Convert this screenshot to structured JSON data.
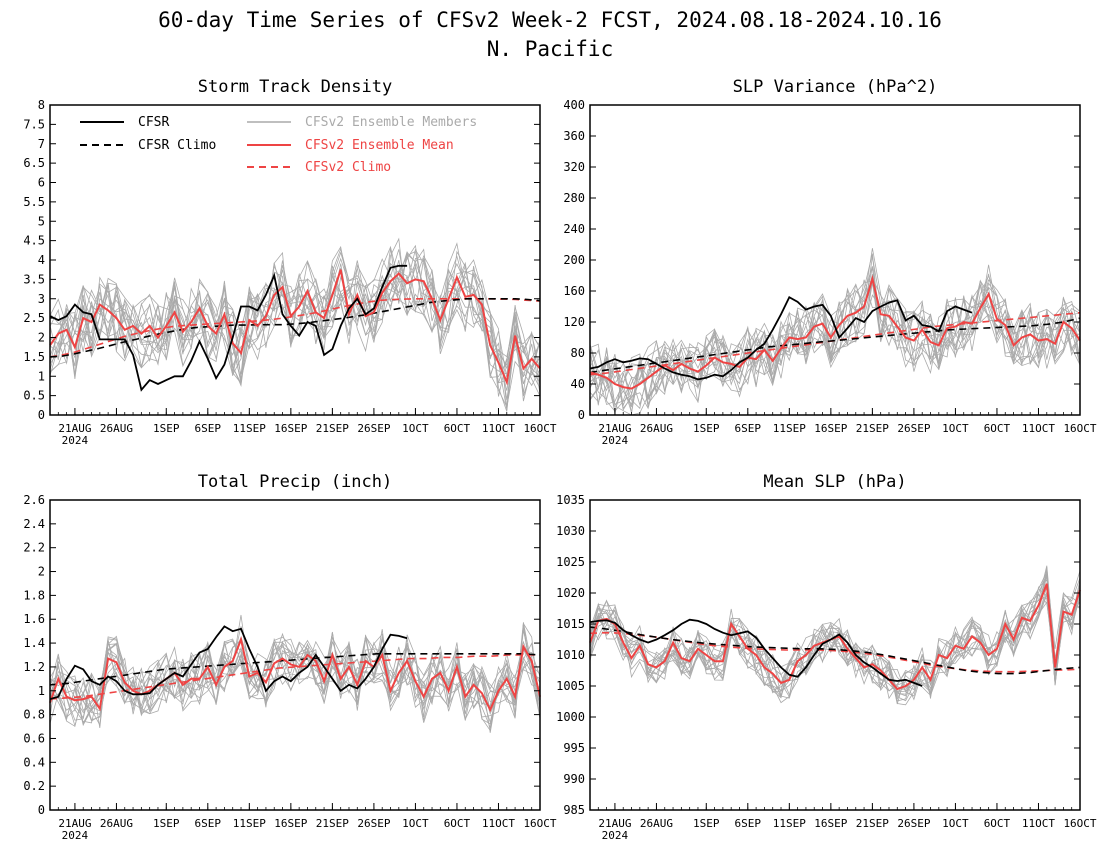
{
  "figure": {
    "title_line1": "60-day Time Series of CFSv2 Week-2 FCST, 2024.08.18-2024.10.16",
    "title_line2": "N. Pacific"
  },
  "legend": {
    "cfsr": "CFSR",
    "cfsr_climo": "CFSR Climo",
    "members": "CFSv2 Ensemble Members",
    "ens_mean": "CFSv2 Ensemble Mean",
    "cfsv2_climo": "CFSv2 Climo"
  },
  "colors": {
    "cfsr": "#000000",
    "members": "#aaaaaa",
    "ens_mean": "#ee4444",
    "cfsv2_climo": "#ee4444",
    "cfsr_climo": "#000000"
  },
  "x_axis": {
    "tick_labels": [
      "21AUG",
      "26AUG",
      "1SEP",
      "6SEP",
      "11SEP",
      "16SEP",
      "21SEP",
      "26SEP",
      "1OCT",
      "6OCT",
      "11OCT",
      "16OCT"
    ],
    "tick_days": [
      3,
      8,
      14,
      19,
      24,
      29,
      34,
      39,
      44,
      49,
      54,
      59
    ],
    "year_label": "2024",
    "n_days": 60
  },
  "chart_data": [
    {
      "type": "line",
      "title": "Storm Track Density",
      "ylim": [
        0,
        8
      ],
      "yticks": [
        "0",
        "0.5",
        "1",
        "1.5",
        "2",
        "2.5",
        "3",
        "3.5",
        "4",
        "4.5",
        "5",
        "5.5",
        "6",
        "6.5",
        "7",
        "7.5",
        "8"
      ],
      "ytick_values": [
        0,
        0.5,
        1,
        1.5,
        2,
        2.5,
        3,
        3.5,
        4,
        4.5,
        5,
        5.5,
        6,
        6.5,
        7,
        7.5,
        8
      ],
      "cfsr": [
        2.55,
        2.45,
        2.55,
        2.85,
        2.65,
        2.6,
        1.95,
        1.95,
        1.95,
        1.95,
        1.55,
        0.65,
        0.9,
        0.8,
        0.9,
        1.0,
        1.0,
        1.4,
        1.9,
        1.45,
        0.95,
        1.3,
        2.0,
        2.8,
        2.8,
        2.7,
        3.1,
        3.6,
        2.6,
        2.3,
        2.05,
        2.4,
        2.3,
        1.55,
        1.7,
        2.3,
        2.75,
        3.0,
        2.6,
        2.75,
        3.3,
        3.8,
        3.85,
        3.85
      ],
      "ens_mean": [
        1.8,
        2.1,
        2.2,
        1.75,
        2.5,
        2.4,
        2.85,
        2.7,
        2.5,
        2.2,
        2.3,
        2.1,
        2.3,
        2.0,
        2.3,
        2.65,
        2.15,
        2.4,
        2.75,
        2.3,
        2.1,
        2.6,
        1.85,
        1.6,
        2.45,
        2.3,
        2.55,
        3.1,
        3.3,
        2.55,
        2.8,
        3.2,
        2.65,
        2.5,
        3.1,
        3.75,
        2.6,
        3.1,
        2.55,
        2.65,
        3.15,
        3.45,
        3.65,
        3.4,
        3.5,
        3.45,
        3.0,
        2.45,
        3.0,
        3.55,
        3.05,
        3.1,
        2.85,
        1.8,
        1.35,
        0.85,
        2.05,
        1.2,
        1.45,
        1.2
      ],
      "cfsr_climo": [
        1.5,
        1.52,
        1.58,
        1.65,
        1.72,
        1.8,
        1.88,
        1.95,
        2.03,
        2.1,
        2.16,
        2.22,
        2.26,
        2.28,
        2.3,
        2.32,
        2.32,
        2.33,
        2.33,
        2.33,
        2.35,
        2.38,
        2.42,
        2.46,
        2.5,
        2.55,
        2.6,
        2.66,
        2.72,
        2.78,
        2.84,
        2.9,
        2.94,
        2.97,
        3.0,
        3.0,
        3.0,
        3.0,
        3.0,
        2.98,
        2.95
      ],
      "cfsr_climo_days": [
        0,
        1.5,
        3,
        4.5,
        6,
        7.5,
        9,
        10.5,
        12,
        13.5,
        15,
        16.5,
        18,
        19.5,
        21,
        22.5,
        24,
        25.5,
        27,
        28.5,
        30,
        31.5,
        33,
        34.5,
        36,
        37.5,
        39,
        40.5,
        42,
        43.5,
        45,
        46.5,
        48,
        49.5,
        51,
        52.5,
        54,
        55.5,
        57,
        58.5,
        60
      ],
      "cfsv2_climo": [
        1.5,
        1.55,
        1.62,
        1.72,
        1.82,
        1.92,
        2.02,
        2.1,
        2.17,
        2.23,
        2.28,
        2.31,
        2.33,
        2.35,
        2.37,
        2.39,
        2.41,
        2.43,
        2.46,
        2.5,
        2.55,
        2.6,
        2.66,
        2.73,
        2.8,
        2.86,
        2.92,
        2.96,
        2.98,
        2.99,
        3.0,
        3.0,
        3.0,
        3.0,
        3.0,
        3.0,
        3.0,
        2.99,
        2.98,
        2.96,
        2.94
      ],
      "members_center": "ens_mean",
      "members_spread": 0.9
    },
    {
      "type": "line",
      "title": "SLP Variance (hPa^2)",
      "ylim": [
        0,
        400
      ],
      "yticks": [
        "0",
        "40",
        "80",
        "120",
        "160",
        "200",
        "240",
        "280",
        "320",
        "360",
        "400"
      ],
      "ytick_values": [
        0,
        40,
        80,
        120,
        160,
        200,
        240,
        280,
        320,
        360,
        400
      ],
      "cfsr": [
        60,
        62,
        68,
        72,
        68,
        70,
        73,
        72,
        66,
        60,
        55,
        52,
        50,
        46,
        48,
        52,
        50,
        58,
        68,
        74,
        84,
        92,
        110,
        130,
        152,
        146,
        136,
        140,
        142,
        128,
        100,
        112,
        125,
        120,
        134,
        140,
        145,
        148,
        122,
        128,
        116,
        114,
        108,
        134,
        140,
        136,
        132
      ],
      "ens_mean": [
        55,
        52,
        48,
        40,
        36,
        34,
        40,
        48,
        56,
        64,
        58,
        66,
        60,
        56,
        64,
        74,
        68,
        66,
        62,
        74,
        72,
        84,
        70,
        86,
        100,
        98,
        100,
        114,
        118,
        100,
        116,
        128,
        132,
        140,
        176,
        130,
        128,
        114,
        100,
        96,
        110,
        94,
        90,
        112,
        114,
        120,
        118,
        138,
        156,
        124,
        116,
        90,
        100,
        104,
        96,
        98,
        92,
        120,
        112,
        96
      ],
      "cfsr_climo": [
        55,
        58,
        61,
        64,
        67,
        70,
        73,
        76,
        79,
        82,
        85,
        88,
        90,
        92,
        94,
        96,
        98,
        100,
        102,
        104,
        106,
        108,
        110,
        111,
        112,
        113,
        114,
        115,
        117,
        120,
        125
      ],
      "cfsr_climo_days": [
        0,
        2,
        4,
        6,
        8,
        10,
        12,
        14,
        16,
        18,
        20,
        22,
        24,
        26,
        28,
        30,
        32,
        34,
        36,
        38,
        40,
        42,
        44,
        46,
        48,
        50,
        52,
        54,
        56,
        58,
        60
      ],
      "cfsv2_climo": [
        52,
        54,
        57,
        60,
        63,
        66,
        69,
        72,
        75,
        78,
        81,
        84,
        87,
        90,
        93,
        96,
        99,
        102,
        105,
        108,
        111,
        114,
        116,
        118,
        120,
        122,
        124,
        126,
        128,
        130,
        132
      ],
      "members_center": "ens_mean",
      "members_spread": 40
    },
    {
      "type": "line",
      "title": "Total Precip (inch)",
      "ylim": [
        0,
        2.6
      ],
      "yticks": [
        "0",
        "0.2",
        "0.4",
        "0.6",
        "0.8",
        "1",
        "1.2",
        "1.4",
        "1.6",
        "1.8",
        "2",
        "2.2",
        "2.4",
        "2.6"
      ],
      "ytick_values": [
        0,
        0.2,
        0.4,
        0.6,
        0.8,
        1.0,
        1.2,
        1.4,
        1.6,
        1.8,
        2.0,
        2.2,
        2.4,
        2.6
      ],
      "cfsr": [
        0.93,
        0.95,
        1.1,
        1.21,
        1.18,
        1.08,
        1.05,
        1.12,
        1.08,
        1.0,
        0.97,
        0.97,
        0.98,
        1.05,
        1.1,
        1.15,
        1.12,
        1.22,
        1.32,
        1.35,
        1.45,
        1.54,
        1.5,
        1.52,
        1.35,
        1.2,
        1.0,
        1.08,
        1.12,
        1.08,
        1.15,
        1.2,
        1.3,
        1.2,
        1.1,
        1.0,
        1.05,
        1.02,
        1.1,
        1.2,
        1.35,
        1.47,
        1.46,
        1.44
      ],
      "ens_mean": [
        0.9,
        1.1,
        0.95,
        0.92,
        0.93,
        0.95,
        0.85,
        1.27,
        1.24,
        1.07,
        1.0,
        0.97,
        1.0,
        1.05,
        1.1,
        1.15,
        1.05,
        1.1,
        1.1,
        1.2,
        1.05,
        1.2,
        1.25,
        1.43,
        1.12,
        1.15,
        1.07,
        1.23,
        1.27,
        1.22,
        1.2,
        1.3,
        1.25,
        1.08,
        1.3,
        1.1,
        1.2,
        1.05,
        1.25,
        1.2,
        1.3,
        1.0,
        1.15,
        1.25,
        1.08,
        0.95,
        1.1,
        1.15,
        1.0,
        1.2,
        0.95,
        1.05,
        0.98,
        0.84,
        1.0,
        1.1,
        0.95,
        1.37,
        1.25,
        0.95
      ],
      "cfsr_climo": [
        1.05,
        1.06,
        1.08,
        1.1,
        1.12,
        1.14,
        1.16,
        1.18,
        1.19,
        1.2,
        1.21,
        1.22,
        1.23,
        1.24,
        1.25,
        1.26,
        1.27,
        1.28,
        1.29,
        1.3,
        1.31,
        1.31,
        1.31,
        1.31,
        1.31,
        1.31,
        1.31,
        1.31,
        1.31,
        1.31,
        1.3
      ],
      "cfsr_climo_days": [
        0,
        2,
        4,
        6,
        8,
        10,
        12,
        14,
        16,
        18,
        20,
        22,
        24,
        26,
        28,
        30,
        32,
        34,
        36,
        38,
        40,
        42,
        44,
        46,
        48,
        50,
        52,
        54,
        56,
        58,
        60
      ],
      "cfsv2_climo": [
        0.93,
        0.94,
        0.95,
        0.97,
        0.99,
        1.01,
        1.03,
        1.05,
        1.07,
        1.09,
        1.11,
        1.13,
        1.15,
        1.17,
        1.19,
        1.2,
        1.21,
        1.22,
        1.23,
        1.24,
        1.25,
        1.26,
        1.27,
        1.27,
        1.28,
        1.28,
        1.29,
        1.29,
        1.3,
        1.3,
        1.3
      ],
      "members_center": "ens_mean",
      "members_spread": 0.22
    },
    {
      "type": "line",
      "title": "Mean SLP (hPa)",
      "ylim": [
        985,
        1035
      ],
      "yticks": [
        "985",
        "990",
        "995",
        "1000",
        "1005",
        "1010",
        "1015",
        "1020",
        "1025",
        "1030",
        "1035"
      ],
      "ytick_values": [
        985,
        990,
        995,
        1000,
        1005,
        1010,
        1015,
        1020,
        1025,
        1030,
        1035
      ],
      "cfsr": [
        1015.3,
        1015.5,
        1015.6,
        1015.2,
        1014.0,
        1013.2,
        1012.5,
        1012.0,
        1012.5,
        1013.2,
        1014.0,
        1015.0,
        1015.7,
        1015.5,
        1015.0,
        1014.2,
        1013.6,
        1013.2,
        1013.5,
        1013.8,
        1012.8,
        1011.0,
        1009.5,
        1008.0,
        1006.8,
        1006.5,
        1008.0,
        1010.0,
        1011.8,
        1012.5,
        1013.3,
        1012.0,
        1010.0,
        1008.8,
        1008.0,
        1007.0,
        1006.0,
        1005.8,
        1006.0,
        1005.5,
        1005.0
      ],
      "ens_mean": [
        1012.0,
        1015.5,
        1015.8,
        1015.0,
        1012.0,
        1009.5,
        1011.5,
        1008.5,
        1008.0,
        1009.0,
        1012.0,
        1009.5,
        1009.0,
        1011.0,
        1010.0,
        1009.0,
        1009.0,
        1015.0,
        1013.0,
        1011.0,
        1010.0,
        1008.0,
        1007.0,
        1005.5,
        1006.0,
        1009.0,
        1010.0,
        1011.5,
        1012.0,
        1012.5,
        1013.0,
        1011.0,
        1009.5,
        1008.0,
        1008.5,
        1007.5,
        1006.0,
        1004.5,
        1005.0,
        1006.0,
        1008.0,
        1006.0,
        1010.0,
        1009.5,
        1011.5,
        1011.0,
        1013.0,
        1012.0,
        1010.0,
        1011.0,
        1015.0,
        1012.5,
        1016.0,
        1015.5,
        1018.0,
        1021.5,
        1008.0,
        1017.0,
        1016.5,
        1020.5
      ],
      "cfsr_climo": [
        1014.5,
        1014.2,
        1013.8,
        1013.3,
        1012.9,
        1012.5,
        1012.2,
        1011.9,
        1011.7,
        1011.5,
        1011.3,
        1011.2,
        1011.1,
        1011.0,
        1011.0,
        1010.9,
        1010.7,
        1010.4,
        1010.0,
        1009.5,
        1009.0,
        1008.5,
        1008.0,
        1007.5,
        1007.2,
        1007.0,
        1007.0,
        1007.2,
        1007.5,
        1007.8,
        1008.0
      ],
      "cfsr_climo_days": [
        0,
        2,
        4,
        6,
        8,
        10,
        12,
        14,
        16,
        18,
        20,
        22,
        24,
        26,
        28,
        30,
        32,
        34,
        36,
        38,
        40,
        42,
        44,
        46,
        48,
        50,
        52,
        54,
        56,
        58,
        60
      ],
      "cfsv2_climo": [
        1013.5,
        1013.6,
        1013.5,
        1013.2,
        1012.9,
        1012.5,
        1012.1,
        1011.7,
        1011.4,
        1011.2,
        1011.0,
        1010.9,
        1010.8,
        1010.8,
        1010.8,
        1010.7,
        1010.5,
        1010.2,
        1009.8,
        1009.3,
        1008.8,
        1008.3,
        1007.9,
        1007.6,
        1007.4,
        1007.3,
        1007.3,
        1007.4,
        1007.5,
        1007.6,
        1007.7
      ],
      "members_center": "ens_mean",
      "members_spread": 3.2
    }
  ]
}
